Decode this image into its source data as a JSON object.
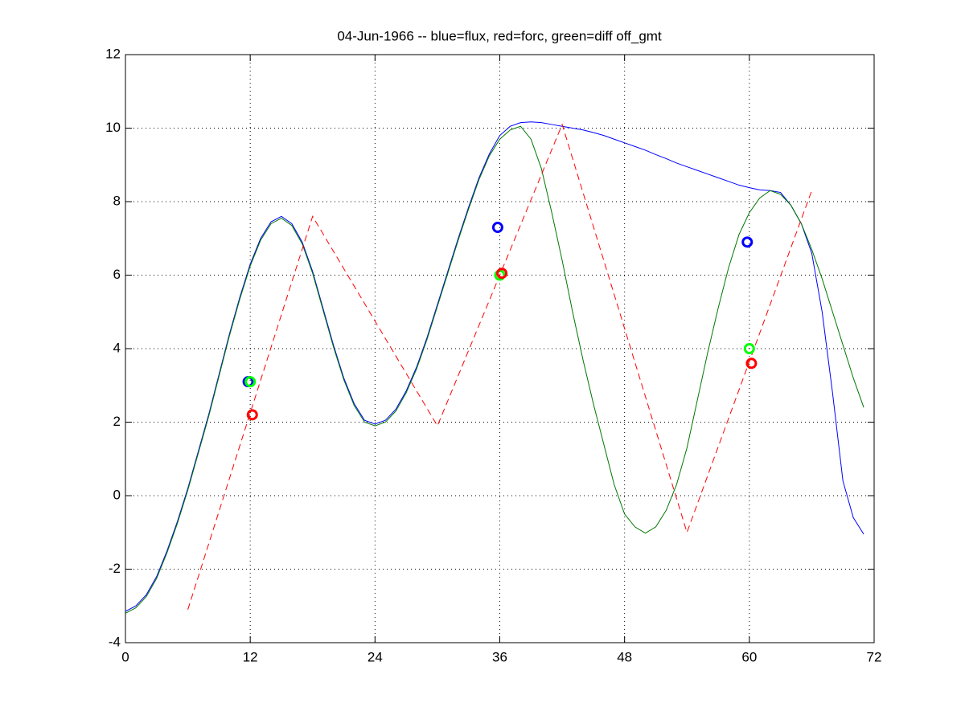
{
  "chart_data": {
    "type": "line",
    "title": "04-Jun-1966 -- blue=flux, red=forc, green=diff off_gmt",
    "xlim": [
      0,
      72
    ],
    "xticks": [
      0,
      12,
      24,
      36,
      48,
      60,
      72
    ],
    "ylim": [
      -4,
      12
    ],
    "yticks": [
      -4,
      -2,
      0,
      2,
      4,
      6,
      8,
      10,
      12
    ],
    "grid": true,
    "series": [
      {
        "color": "#0000ff",
        "style": "solid",
        "mode": "lines",
        "x": [
          0,
          1,
          2,
          3,
          4,
          5,
          6,
          7,
          8,
          9,
          10,
          11,
          12,
          13,
          14,
          15,
          16,
          17,
          18,
          19,
          20,
          21,
          22,
          23,
          24,
          25,
          26,
          27,
          28,
          29,
          30,
          31,
          32,
          33,
          34,
          35,
          36,
          37,
          38,
          39,
          40,
          41,
          42,
          43,
          44,
          45,
          46,
          47,
          48,
          49,
          50,
          51,
          52,
          53,
          54,
          55,
          56,
          57,
          58,
          59,
          60,
          61,
          62,
          63,
          64,
          65,
          66,
          67,
          68,
          69,
          70,
          71
        ],
        "values": [
          -3.15,
          -3.0,
          -2.7,
          -2.2,
          -1.5,
          -0.7,
          0.2,
          1.2,
          2.2,
          3.3,
          4.4,
          5.4,
          6.3,
          7.0,
          7.45,
          7.6,
          7.4,
          6.9,
          6.1,
          5.1,
          4.1,
          3.2,
          2.5,
          2.05,
          1.95,
          2.05,
          2.35,
          2.85,
          3.5,
          4.3,
          5.2,
          6.1,
          7.0,
          7.85,
          8.65,
          9.3,
          9.8,
          10.05,
          10.15,
          10.17,
          10.15,
          10.1,
          10.05,
          10.0,
          9.95,
          9.88,
          9.8,
          9.7,
          9.6,
          9.5,
          9.4,
          9.28,
          9.17,
          9.05,
          8.95,
          8.85,
          8.75,
          8.65,
          8.55,
          8.45,
          8.38,
          8.32,
          8.3,
          8.25,
          7.9,
          7.4,
          6.6,
          5.0,
          2.8,
          0.4,
          -0.6,
          -1.05
        ]
      },
      {
        "color": "#007700",
        "style": "solid",
        "mode": "lines",
        "x": [
          0,
          1,
          2,
          3,
          4,
          5,
          6,
          7,
          8,
          9,
          10,
          11,
          12,
          13,
          14,
          15,
          16,
          17,
          18,
          19,
          20,
          21,
          22,
          23,
          24,
          25,
          26,
          27,
          28,
          29,
          30,
          31,
          32,
          33,
          34,
          35,
          36,
          37,
          38,
          39,
          40,
          41,
          42,
          43,
          44,
          45,
          46,
          47,
          48,
          49,
          50,
          51,
          52,
          53,
          54,
          55,
          56,
          57,
          58,
          59,
          60,
          61,
          62,
          63,
          64,
          65,
          66,
          67,
          68,
          69,
          70,
          71
        ],
        "values": [
          -3.2,
          -3.05,
          -2.75,
          -2.25,
          -1.55,
          -0.75,
          0.15,
          1.15,
          2.15,
          3.25,
          4.35,
          5.35,
          6.25,
          6.95,
          7.4,
          7.55,
          7.35,
          6.85,
          6.05,
          5.05,
          4.05,
          3.15,
          2.45,
          2.0,
          1.9,
          2.0,
          2.3,
          2.8,
          3.45,
          4.25,
          5.15,
          6.05,
          6.95,
          7.8,
          8.6,
          9.25,
          9.7,
          9.95,
          10.05,
          9.7,
          8.9,
          7.7,
          6.4,
          5.0,
          3.7,
          2.5,
          1.4,
          0.3,
          -0.5,
          -0.85,
          -1.02,
          -0.85,
          -0.4,
          0.3,
          1.3,
          2.6,
          3.9,
          5.1,
          6.2,
          7.1,
          7.7,
          8.1,
          8.3,
          8.2,
          7.9,
          7.4,
          6.7,
          5.9,
          5.0,
          4.1,
          3.2,
          2.4
        ]
      },
      {
        "color": "#ff0000",
        "style": "dashed",
        "mode": "lines",
        "x": [
          6,
          18,
          30,
          42,
          54,
          66
        ],
        "values": [
          -3.1,
          7.6,
          1.9,
          10.1,
          -1.0,
          8.3
        ]
      },
      {
        "color": "#0000ff",
        "mode": "markers",
        "x": [
          11.8,
          35.8,
          59.8
        ],
        "values": [
          3.1,
          7.3,
          6.9
        ]
      },
      {
        "color": "#00ff00",
        "mode": "markers",
        "x": [
          12,
          36,
          60
        ],
        "values": [
          3.1,
          6.0,
          4.0
        ]
      },
      {
        "color": "#ff0000",
        "mode": "markers",
        "x": [
          12.2,
          36.2,
          60.2
        ],
        "values": [
          2.2,
          6.05,
          3.6
        ]
      }
    ]
  }
}
